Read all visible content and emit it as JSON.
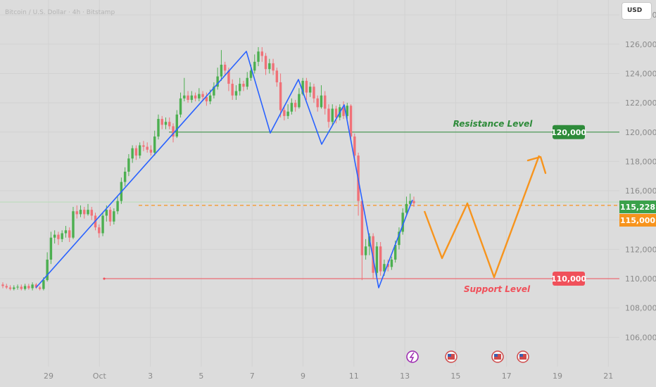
{
  "chart_data": {
    "type": "candlestick",
    "title": "Bitcoin / U.S. Dollar · 4h · Bitstamp",
    "currency": "USD",
    "y_ticks": [
      "128,000",
      "126,000",
      "124,000",
      "122,000",
      "120,000",
      "118,000",
      "116,000",
      "114,000",
      "112,000",
      "110,000",
      "108,000",
      "106,000"
    ],
    "y_tick_values": [
      128000,
      126000,
      124000,
      122000,
      120000,
      118000,
      116000,
      114000,
      112000,
      110000,
      108000,
      106000
    ],
    "ylim": [
      104000,
      129400
    ],
    "x_ticks": [
      "29",
      "Oct",
      "3",
      "5",
      "7",
      "9",
      "11",
      "13",
      "15",
      "17",
      "19",
      "21"
    ],
    "levels": [
      {
        "name": "Resistance Level",
        "value": 120000,
        "label": "120,000",
        "color": "#2e8b3a"
      },
      {
        "name": "Support Level",
        "value": 110000,
        "label": "110,000",
        "color": "#f0505a"
      }
    ],
    "current_price": {
      "value": 115228,
      "label": "115,228",
      "color": "#3aa14a"
    },
    "target_price": {
      "value": 115000,
      "label": "115,000",
      "color": "#f7941d"
    },
    "candles": [
      [
        109600,
        109500,
        109750,
        109350
      ],
      [
        109500,
        109400,
        109650,
        109300
      ],
      [
        109400,
        109300,
        109550,
        109200
      ],
      [
        109300,
        109400,
        109550,
        109200
      ],
      [
        109400,
        109450,
        109600,
        109250
      ],
      [
        109450,
        109300,
        109600,
        109200
      ],
      [
        109300,
        109500,
        109650,
        109200
      ],
      [
        109500,
        109350,
        109650,
        109250
      ],
      [
        109350,
        109600,
        109750,
        109200
      ],
      [
        109600,
        109400,
        109700,
        109300
      ],
      [
        109400,
        109300,
        109500,
        109200
      ],
      [
        109300,
        109900,
        110100,
        109200
      ],
      [
        109900,
        111300,
        111800,
        109800
      ],
      [
        111300,
        112800,
        113200,
        111000
      ],
      [
        112800,
        113000,
        113300,
        112400
      ],
      [
        113000,
        112700,
        113200,
        112300
      ],
      [
        112700,
        113100,
        113300,
        112500
      ],
      [
        113100,
        113300,
        113600,
        112800
      ],
      [
        113300,
        112800,
        113500,
        112500
      ],
      [
        112800,
        114600,
        114900,
        112700
      ],
      [
        114600,
        114400,
        115000,
        114100
      ],
      [
        114400,
        114700,
        115000,
        114200
      ],
      [
        114700,
        114400,
        114900,
        114100
      ],
      [
        114400,
        114700,
        115100,
        114300
      ],
      [
        114700,
        114300,
        114900,
        114000
      ],
      [
        114300,
        113500,
        114500,
        113300
      ],
      [
        113500,
        113100,
        113700,
        112800
      ],
      [
        113100,
        114300,
        114500,
        112900
      ],
      [
        114300,
        114700,
        115000,
        113900
      ],
      [
        114700,
        113900,
        114900,
        113600
      ],
      [
        113900,
        114600,
        114800,
        113700
      ],
      [
        114600,
        115300,
        115600,
        114400
      ],
      [
        115300,
        116600,
        116900,
        115100
      ],
      [
        116600,
        117300,
        117600,
        116300
      ],
      [
        117300,
        118200,
        118500,
        117000
      ],
      [
        118200,
        118900,
        119100,
        117900
      ],
      [
        118900,
        118400,
        119100,
        118100
      ],
      [
        118400,
        119100,
        119300,
        118200
      ],
      [
        119100,
        119000,
        119400,
        118700
      ],
      [
        119000,
        118800,
        119300,
        118600
      ],
      [
        118800,
        118600,
        119100,
        118400
      ],
      [
        118600,
        119700,
        120100,
        118400
      ],
      [
        119700,
        120900,
        121200,
        119500
      ],
      [
        120900,
        120500,
        121100,
        120200
      ],
      [
        120500,
        120700,
        121000,
        120200
      ],
      [
        120700,
        120400,
        121000,
        120200
      ],
      [
        120400,
        119700,
        120600,
        119300
      ],
      [
        119700,
        121200,
        121500,
        119600
      ],
      [
        121200,
        122300,
        122700,
        121000
      ],
      [
        122300,
        122500,
        123700,
        122100
      ],
      [
        122500,
        122200,
        122800,
        122000
      ],
      [
        122200,
        122500,
        122800,
        122000
      ],
      [
        122500,
        122300,
        122700,
        122100
      ],
      [
        122300,
        122600,
        123000,
        122100
      ],
      [
        122600,
        122400,
        122800,
        122100
      ],
      [
        122400,
        122100,
        122700,
        121800
      ],
      [
        122100,
        122500,
        122900,
        121900
      ],
      [
        122500,
        123100,
        123400,
        122300
      ],
      [
        123100,
        123800,
        124400,
        122900
      ],
      [
        123800,
        124600,
        125600,
        123500
      ],
      [
        124600,
        124200,
        124800,
        123900
      ],
      [
        124200,
        123300,
        124400,
        122800
      ],
      [
        123300,
        122500,
        123600,
        122200
      ],
      [
        122500,
        122800,
        123200,
        122200
      ],
      [
        122800,
        123300,
        123700,
        122500
      ],
      [
        123300,
        123100,
        123500,
        122800
      ],
      [
        123100,
        123700,
        124100,
        122900
      ],
      [
        123700,
        124200,
        124600,
        123500
      ],
      [
        124200,
        124800,
        125300,
        124000
      ],
      [
        124800,
        125500,
        125800,
        124500
      ],
      [
        125500,
        125200,
        125800,
        124800
      ],
      [
        125200,
        124300,
        125400,
        123900
      ],
      [
        124300,
        124700,
        125000,
        124000
      ],
      [
        124700,
        124200,
        125000,
        123900
      ],
      [
        124200,
        123400,
        124400,
        123100
      ],
      [
        123400,
        121500,
        124000,
        121000
      ],
      [
        121500,
        121100,
        121800,
        120800
      ],
      [
        121100,
        121400,
        121900,
        120900
      ],
      [
        121400,
        122000,
        122300,
        121200
      ],
      [
        122000,
        121700,
        122200,
        121400
      ],
      [
        121700,
        122600,
        123000,
        121600
      ],
      [
        122600,
        123500,
        123700,
        122500
      ],
      [
        123500,
        122700,
        123700,
        122200
      ],
      [
        122700,
        123100,
        123400,
        122400
      ],
      [
        123100,
        122300,
        123300,
        122000
      ],
      [
        122300,
        121700,
        122500,
        121400
      ],
      [
        121700,
        122500,
        123200,
        121600
      ],
      [
        122500,
        121600,
        122800,
        121200
      ],
      [
        121600,
        120700,
        121900,
        120300
      ],
      [
        120700,
        121600,
        121900,
        120500
      ],
      [
        121600,
        121000,
        121800,
        120600
      ],
      [
        121000,
        121700,
        121900,
        120800
      ],
      [
        121700,
        121100,
        122100,
        120900
      ],
      [
        121100,
        121800,
        122000,
        120900
      ],
      [
        121800,
        119700,
        121900,
        119400
      ],
      [
        119700,
        118400,
        119900,
        118100
      ],
      [
        118400,
        115300,
        118600,
        114300
      ],
      [
        115300,
        111600,
        115500,
        109900
      ],
      [
        111600,
        112200,
        112700,
        111300
      ],
      [
        112200,
        112900,
        113100,
        111600
      ],
      [
        112900,
        110400,
        113100,
        110000
      ],
      [
        110400,
        112200,
        112500,
        110000
      ],
      [
        112200,
        110500,
        112500,
        110200
      ],
      [
        110500,
        111000,
        111300,
        110200
      ],
      [
        111000,
        110800,
        111300,
        110500
      ],
      [
        110800,
        111300,
        111500,
        110600
      ],
      [
        111300,
        112300,
        112600,
        111100
      ],
      [
        112300,
        113200,
        113500,
        112000
      ],
      [
        113200,
        114500,
        114800,
        113000
      ],
      [
        114500,
        115100,
        115600,
        114300
      ],
      [
        115100,
        115300,
        115800,
        115000
      ],
      [
        115300,
        115150,
        115600,
        114900
      ]
    ],
    "zigzag_blue": [
      [
        51,
        409
      ],
      [
        350,
        73
      ],
      [
        384,
        189
      ],
      [
        424,
        113
      ],
      [
        457,
        205
      ],
      [
        489,
        149
      ],
      [
        538,
        409
      ],
      [
        586,
        284
      ]
    ],
    "projection_orange": [
      [
        603,
        300
      ],
      [
        628,
        367
      ],
      [
        664,
        289
      ],
      [
        702,
        394
      ],
      [
        766,
        221
      ]
    ]
  }
}
